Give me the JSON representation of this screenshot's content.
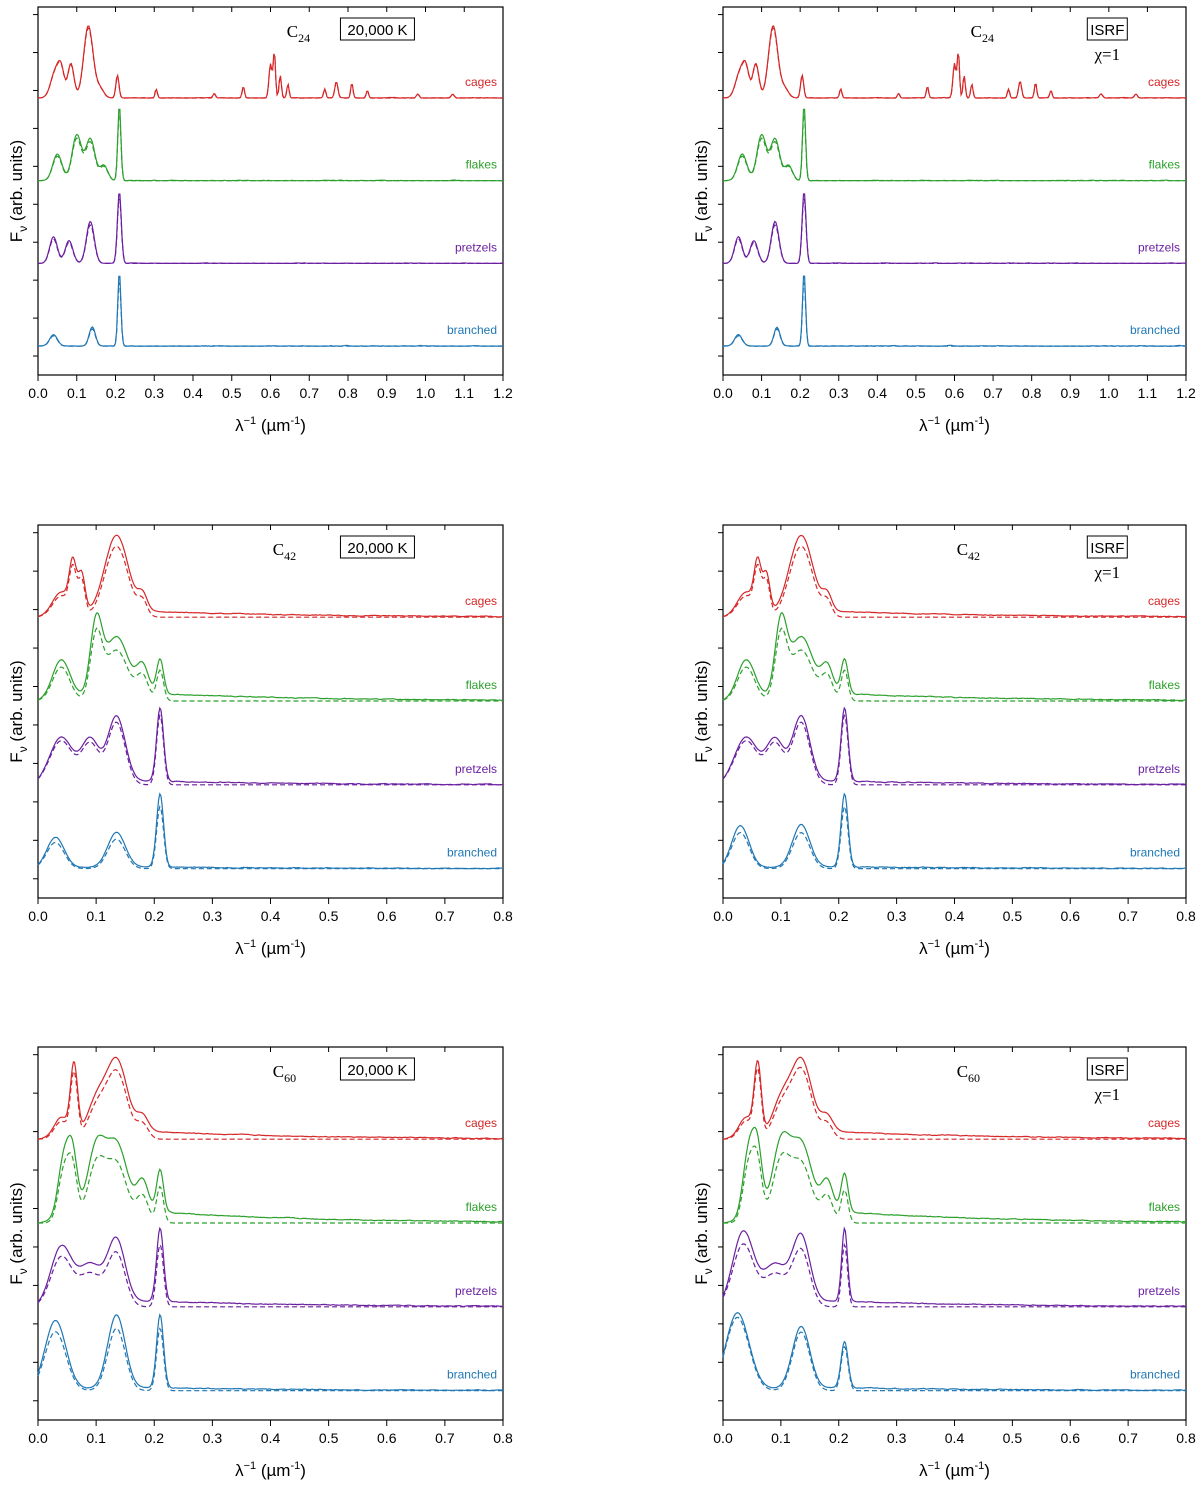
{
  "colors": {
    "cages": "#d62728",
    "flakes": "#2ca02c",
    "pretzels": "#6a1fa0",
    "branched": "#1f77b4"
  },
  "axis_labels": {
    "x_main": "λ",
    "x_sup": "−1",
    "x_unit": " (µm",
    "x_unit_sup": "-1",
    "x_close": ")",
    "y_main": "F",
    "y_sub": "ν",
    "y_rest": " (arb. units)"
  },
  "chart_data": [
    {
      "type": "line",
      "title": "C24",
      "title_base": "C",
      "title_sub": "24",
      "condition": [
        "20,000 K"
      ],
      "xlim": [
        0,
        1.2
      ],
      "xticks": [
        "0.0",
        "0.1",
        "0.2",
        "0.3",
        "0.4",
        "0.5",
        "0.6",
        "0.7",
        "0.8",
        "0.9",
        "1.0",
        "1.1",
        "1.2"
      ],
      "xlabel": "λ−1 (µm-1)",
      "ylabel": "Fν (arb. units)",
      "series": [
        {
          "name": "cages",
          "label": "cages",
          "peaks": [
            [
              0.045,
              0.35,
              0.012
            ],
            [
              0.06,
              0.3,
              0.008
            ],
            [
              0.085,
              0.45,
              0.008
            ],
            [
              0.13,
              0.95,
              0.012
            ],
            [
              0.16,
              0.12,
              0.01
            ],
            [
              0.205,
              0.3,
              0.004
            ],
            [
              0.305,
              0.12,
              0.003
            ],
            [
              0.455,
              0.06,
              0.003
            ],
            [
              0.53,
              0.15,
              0.003
            ],
            [
              0.6,
              0.45,
              0.004
            ],
            [
              0.61,
              0.6,
              0.003
            ],
            [
              0.625,
              0.3,
              0.003
            ],
            [
              0.645,
              0.18,
              0.003
            ],
            [
              0.74,
              0.12,
              0.003
            ],
            [
              0.77,
              0.22,
              0.004
            ],
            [
              0.81,
              0.2,
              0.003
            ],
            [
              0.85,
              0.1,
              0.003
            ],
            [
              0.98,
              0.05,
              0.004
            ],
            [
              1.07,
              0.05,
              0.004
            ]
          ],
          "dash_scale": 0.97
        },
        {
          "name": "flakes",
          "label": "flakes",
          "peaks": [
            [
              0.05,
              0.35,
              0.012
            ],
            [
              0.1,
              0.6,
              0.012
            ],
            [
              0.135,
              0.55,
              0.012
            ],
            [
              0.17,
              0.2,
              0.01
            ],
            [
              0.21,
              1.0,
              0.004
            ]
          ],
          "dash_scale": 0.92
        },
        {
          "name": "pretzels",
          "label": "pretzels",
          "peaks": [
            [
              0.04,
              0.35,
              0.01
            ],
            [
              0.08,
              0.3,
              0.01
            ],
            [
              0.135,
              0.55,
              0.01
            ],
            [
              0.21,
              0.95,
              0.005
            ]
          ],
          "dash_scale": 0.92
        },
        {
          "name": "branched",
          "label": "branched",
          "peaks": [
            [
              0.04,
              0.15,
              0.01
            ],
            [
              0.14,
              0.25,
              0.008
            ],
            [
              0.21,
              0.98,
              0.004
            ]
          ],
          "dash_scale": 0.9
        }
      ]
    },
    {
      "type": "line",
      "title": "C24",
      "title_base": "C",
      "title_sub": "24",
      "condition": [
        "ISRF",
        "χ=1"
      ],
      "xlim": [
        0,
        1.2
      ],
      "xticks": [
        "0.0",
        "0.1",
        "0.2",
        "0.3",
        "0.4",
        "0.5",
        "0.6",
        "0.7",
        "0.8",
        "0.9",
        "1.0",
        "1.1",
        "1.2"
      ],
      "xlabel": "λ−1 (µm-1)",
      "ylabel": "Fν (arb. units)",
      "series": [
        {
          "name": "cages",
          "label": "cages",
          "peaks": [
            [
              0.045,
              0.35,
              0.012
            ],
            [
              0.06,
              0.3,
              0.008
            ],
            [
              0.085,
              0.45,
              0.008
            ],
            [
              0.13,
              0.95,
              0.012
            ],
            [
              0.16,
              0.12,
              0.01
            ],
            [
              0.205,
              0.3,
              0.004
            ],
            [
              0.305,
              0.12,
              0.003
            ],
            [
              0.455,
              0.06,
              0.003
            ],
            [
              0.53,
              0.15,
              0.003
            ],
            [
              0.6,
              0.45,
              0.004
            ],
            [
              0.61,
              0.6,
              0.003
            ],
            [
              0.625,
              0.3,
              0.003
            ],
            [
              0.645,
              0.18,
              0.003
            ],
            [
              0.74,
              0.12,
              0.003
            ],
            [
              0.77,
              0.22,
              0.004
            ],
            [
              0.81,
              0.2,
              0.003
            ],
            [
              0.85,
              0.1,
              0.003
            ],
            [
              0.98,
              0.05,
              0.004
            ],
            [
              1.07,
              0.05,
              0.004
            ]
          ],
          "dash_scale": 0.97
        },
        {
          "name": "flakes",
          "label": "flakes",
          "peaks": [
            [
              0.05,
              0.35,
              0.012
            ],
            [
              0.1,
              0.6,
              0.012
            ],
            [
              0.135,
              0.55,
              0.012
            ],
            [
              0.17,
              0.2,
              0.01
            ],
            [
              0.21,
              1.0,
              0.004
            ]
          ],
          "dash_scale": 0.92
        },
        {
          "name": "pretzels",
          "label": "pretzels",
          "peaks": [
            [
              0.04,
              0.35,
              0.01
            ],
            [
              0.08,
              0.3,
              0.01
            ],
            [
              0.135,
              0.55,
              0.01
            ],
            [
              0.21,
              0.95,
              0.005
            ]
          ],
          "dash_scale": 0.92
        },
        {
          "name": "branched",
          "label": "branched",
          "peaks": [
            [
              0.04,
              0.15,
              0.01
            ],
            [
              0.14,
              0.25,
              0.008
            ],
            [
              0.21,
              0.98,
              0.004
            ]
          ],
          "dash_scale": 0.9
        }
      ]
    },
    {
      "type": "line",
      "title": "C42",
      "title_base": "C",
      "title_sub": "42",
      "condition": [
        "20,000 K"
      ],
      "xlim": [
        0,
        0.8
      ],
      "xticks": [
        "0.0",
        "0.1",
        "0.2",
        "0.3",
        "0.4",
        "0.5",
        "0.6",
        "0.7",
        "0.8"
      ],
      "xlabel": "λ−1 (µm-1)",
      "ylabel": "Fν (arb. units)",
      "series": [
        {
          "name": "cages",
          "label": "cages",
          "peaks": [
            [
              0.04,
              0.3,
              0.015
            ],
            [
              0.06,
              0.6,
              0.006
            ],
            [
              0.075,
              0.5,
              0.006
            ],
            [
              0.135,
              1.0,
              0.02
            ],
            [
              0.18,
              0.2,
              0.008
            ]
          ],
          "dash_scale": 0.92,
          "tail": 0.15
        },
        {
          "name": "flakes",
          "label": "flakes",
          "peaks": [
            [
              0.04,
              0.5,
              0.015
            ],
            [
              0.1,
              0.9,
              0.01
            ],
            [
              0.135,
              0.75,
              0.02
            ],
            [
              0.18,
              0.35,
              0.01
            ],
            [
              0.21,
              0.45,
              0.006
            ]
          ],
          "dash_scale": 0.88,
          "tail": 0.2
        },
        {
          "name": "pretzels",
          "label": "pretzels",
          "peaks": [
            [
              0.04,
              0.6,
              0.02
            ],
            [
              0.09,
              0.55,
              0.015
            ],
            [
              0.135,
              0.85,
              0.015
            ],
            [
              0.21,
              0.95,
              0.006
            ]
          ],
          "dash_scale": 0.95,
          "tail": 0.1
        },
        {
          "name": "branched",
          "label": "branched",
          "peaks": [
            [
              0.03,
              0.4,
              0.015
            ],
            [
              0.135,
              0.45,
              0.015
            ],
            [
              0.21,
              0.95,
              0.006
            ]
          ],
          "dash_scale": 0.85,
          "tail": 0.05
        }
      ]
    },
    {
      "type": "line",
      "title": "C42",
      "title_base": "C",
      "title_sub": "42",
      "condition": [
        "ISRF",
        "χ=1"
      ],
      "xlim": [
        0,
        0.8
      ],
      "xticks": [
        "0.0",
        "0.1",
        "0.2",
        "0.3",
        "0.4",
        "0.5",
        "0.6",
        "0.7",
        "0.8"
      ],
      "xlabel": "λ−1 (µm-1)",
      "ylabel": "Fν (arb. units)",
      "series": [
        {
          "name": "cages",
          "label": "cages",
          "peaks": [
            [
              0.04,
              0.3,
              0.015
            ],
            [
              0.06,
              0.6,
              0.006
            ],
            [
              0.075,
              0.5,
              0.006
            ],
            [
              0.135,
              1.0,
              0.02
            ],
            [
              0.18,
              0.2,
              0.008
            ]
          ],
          "dash_scale": 0.92,
          "tail": 0.15
        },
        {
          "name": "flakes",
          "label": "flakes",
          "peaks": [
            [
              0.04,
              0.5,
              0.015
            ],
            [
              0.1,
              0.9,
              0.01
            ],
            [
              0.135,
              0.75,
              0.02
            ],
            [
              0.18,
              0.35,
              0.01
            ],
            [
              0.21,
              0.45,
              0.006
            ]
          ],
          "dash_scale": 0.88,
          "tail": 0.2
        },
        {
          "name": "pretzels",
          "label": "pretzels",
          "peaks": [
            [
              0.04,
              0.6,
              0.02
            ],
            [
              0.09,
              0.55,
              0.015
            ],
            [
              0.135,
              0.85,
              0.015
            ],
            [
              0.21,
              0.95,
              0.006
            ]
          ],
          "dash_scale": 0.95,
          "tail": 0.1
        },
        {
          "name": "branched",
          "label": "branched",
          "peaks": [
            [
              0.03,
              0.55,
              0.015
            ],
            [
              0.135,
              0.55,
              0.015
            ],
            [
              0.21,
              0.95,
              0.006
            ]
          ],
          "dash_scale": 0.85,
          "tail": 0.05
        }
      ]
    },
    {
      "type": "line",
      "title": "C60",
      "title_base": "C",
      "title_sub": "60",
      "condition": [
        "20,000 K"
      ],
      "xlim": [
        0,
        0.8
      ],
      "xticks": [
        "0.0",
        "0.1",
        "0.2",
        "0.3",
        "0.4",
        "0.5",
        "0.6",
        "0.7",
        "0.8"
      ],
      "xlabel": "λ−1 (µm-1)",
      "ylabel": "Fν (arb. units)",
      "series": [
        {
          "name": "cages",
          "label": "cages",
          "peaks": [
            [
              0.04,
              0.25,
              0.012
            ],
            [
              0.062,
              0.9,
              0.006
            ],
            [
              0.1,
              0.4,
              0.015
            ],
            [
              0.135,
              0.95,
              0.018
            ],
            [
              0.18,
              0.2,
              0.01
            ]
          ],
          "dash_scale": 0.92,
          "tail": 0.2
        },
        {
          "name": "flakes",
          "label": "flakes",
          "peaks": [
            [
              0.045,
              0.8,
              0.01
            ],
            [
              0.06,
              0.7,
              0.008
            ],
            [
              0.1,
              0.85,
              0.015
            ],
            [
              0.135,
              0.9,
              0.018
            ],
            [
              0.18,
              0.4,
              0.01
            ],
            [
              0.21,
              0.55,
              0.006
            ]
          ],
          "dash_scale": 0.85,
          "tail": 0.3
        },
        {
          "name": "pretzels",
          "label": "pretzels",
          "peaks": [
            [
              0.04,
              0.75,
              0.018
            ],
            [
              0.09,
              0.5,
              0.02
            ],
            [
              0.135,
              0.8,
              0.015
            ],
            [
              0.21,
              0.95,
              0.006
            ]
          ],
          "dash_scale": 0.85,
          "tail": 0.15
        },
        {
          "name": "branched",
          "label": "branched",
          "peaks": [
            [
              0.03,
              0.9,
              0.018
            ],
            [
              0.135,
              0.95,
              0.015
            ],
            [
              0.21,
              0.95,
              0.006
            ]
          ],
          "dash_scale": 0.85,
          "tail": 0.08
        }
      ]
    },
    {
      "type": "line",
      "title": "C60",
      "title_base": "C",
      "title_sub": "60",
      "condition": [
        "ISRF",
        "χ=1"
      ],
      "xlim": [
        0,
        0.8
      ],
      "xticks": [
        "0.0",
        "0.1",
        "0.2",
        "0.3",
        "0.4",
        "0.5",
        "0.6",
        "0.7",
        "0.8"
      ],
      "xlabel": "λ−1 (µm-1)",
      "ylabel": "Fν (arb. units)",
      "series": [
        {
          "name": "cages",
          "label": "cages",
          "peaks": [
            [
              0.04,
              0.25,
              0.012
            ],
            [
              0.06,
              0.9,
              0.006
            ],
            [
              0.1,
              0.4,
              0.015
            ],
            [
              0.135,
              0.95,
              0.018
            ],
            [
              0.18,
              0.2,
              0.01
            ]
          ],
          "dash_scale": 0.95,
          "tail": 0.2
        },
        {
          "name": "flakes",
          "label": "flakes",
          "peaks": [
            [
              0.045,
              0.9,
              0.01
            ],
            [
              0.06,
              0.75,
              0.008
            ],
            [
              0.1,
              0.9,
              0.015
            ],
            [
              0.135,
              0.9,
              0.018
            ],
            [
              0.18,
              0.4,
              0.01
            ],
            [
              0.21,
              0.5,
              0.006
            ]
          ],
          "dash_scale": 0.85,
          "tail": 0.3
        },
        {
          "name": "pretzels",
          "label": "pretzels",
          "peaks": [
            [
              0.035,
              0.95,
              0.018
            ],
            [
              0.09,
              0.5,
              0.02
            ],
            [
              0.135,
              0.85,
              0.015
            ],
            [
              0.21,
              0.95,
              0.005
            ]
          ],
          "dash_scale": 0.85,
          "tail": 0.15
        },
        {
          "name": "branched",
          "label": "branched",
          "peaks": [
            [
              0.025,
              1.0,
              0.02
            ],
            [
              0.135,
              0.8,
              0.015
            ],
            [
              0.21,
              0.6,
              0.006
            ]
          ],
          "dash_scale": 0.95,
          "tail": 0.08
        }
      ]
    }
  ]
}
